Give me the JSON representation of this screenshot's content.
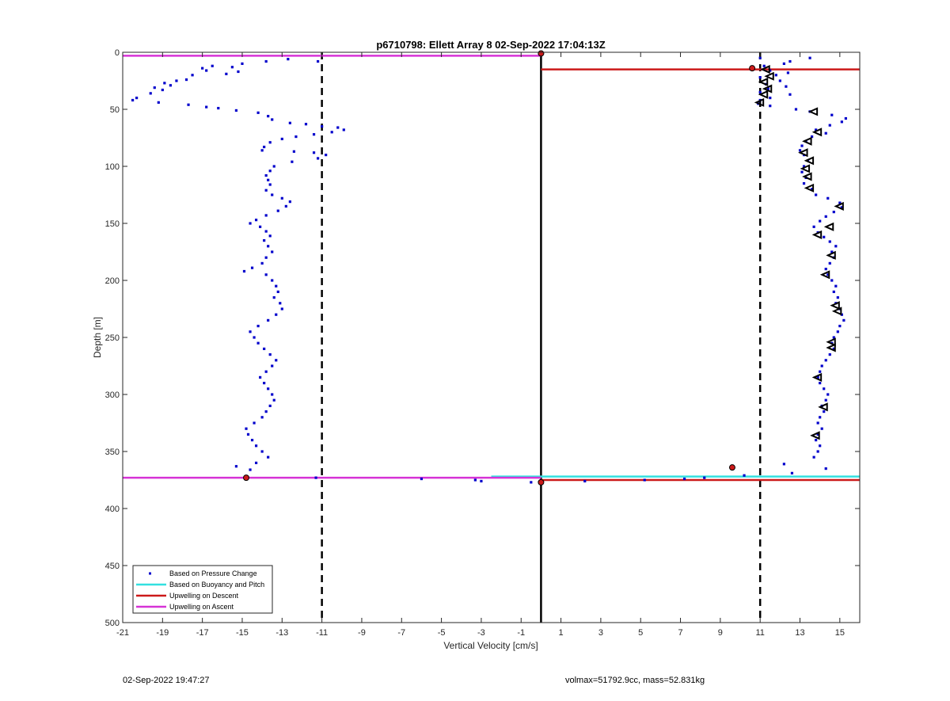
{
  "chart_data": {
    "type": "scatter",
    "title": "p6710798: Ellett Array 8 02-Sep-2022 17:04:13Z",
    "xlabel": "Vertical Velocity [cm/s]",
    "ylabel": "Depth [m]",
    "xlim": [
      -21,
      16
    ],
    "ylim": [
      0,
      500
    ],
    "y_reversed": true,
    "grid": false,
    "x_ticks": [
      -21,
      -19,
      -17,
      -15,
      -13,
      -11,
      -9,
      -7,
      -5,
      -3,
      -1,
      1,
      3,
      5,
      7,
      9,
      11,
      13,
      15
    ],
    "y_ticks": [
      0,
      50,
      100,
      150,
      200,
      250,
      300,
      350,
      400,
      450,
      500
    ],
    "legend_position": "bottom-left",
    "legend": [
      {
        "label": "Based on Pressure Change",
        "color": "#0000cc",
        "style": "dot"
      },
      {
        "label": "Based on Buoyancy and Pitch",
        "color": "#33e0e0",
        "style": "line"
      },
      {
        "label": "Upwelling on Descent",
        "color": "#cc1a1a",
        "style": "line"
      },
      {
        "label": "Upwelling on Ascent",
        "color": "#d633d6",
        "style": "line"
      }
    ],
    "reference_lines": [
      {
        "orientation": "vertical",
        "x": -11,
        "style": "dashed",
        "color": "#000000"
      },
      {
        "orientation": "vertical",
        "x": 11,
        "style": "dashed",
        "color": "#000000"
      },
      {
        "orientation": "vertical",
        "x": 0,
        "style": "solid",
        "color": "#000000"
      }
    ],
    "horizontal_lines": [
      {
        "name": "Upwelling on Ascent",
        "y": 3,
        "x_range": [
          -21,
          0
        ],
        "color": "#d633d6"
      },
      {
        "name": "Upwelling on Descent",
        "y": 15,
        "x_range": [
          0,
          16
        ],
        "color": "#cc1a1a"
      },
      {
        "name": "Based on Buoyancy and Pitch",
        "y": 372,
        "x_range": [
          -2.5,
          16
        ],
        "color": "#33e0e0"
      },
      {
        "name": "Upwelling on Descent",
        "y": 375,
        "x_range": [
          0,
          16
        ],
        "color": "#cc1a1a"
      },
      {
        "name": "Upwelling on Ascent",
        "y": 373,
        "x_range": [
          -21,
          0
        ],
        "color": "#d633d6"
      }
    ],
    "descent_profile": [
      [
        0.0,
        1
      ],
      [
        11.0,
        5
      ],
      [
        12.5,
        8
      ],
      [
        13.5,
        5
      ],
      [
        12.2,
        10
      ],
      [
        11.2,
        12
      ],
      [
        10.6,
        14
      ],
      [
        11.5,
        16
      ],
      [
        12.4,
        18
      ],
      [
        11.8,
        20
      ],
      [
        11.0,
        22
      ],
      [
        12.0,
        25
      ],
      [
        11.3,
        28
      ],
      [
        12.3,
        30
      ],
      [
        11.4,
        32
      ],
      [
        11.0,
        35
      ],
      [
        12.5,
        37
      ],
      [
        11.5,
        40
      ],
      [
        11.0,
        42
      ],
      [
        10.9,
        45
      ],
      [
        11.5,
        47
      ],
      [
        12.8,
        50
      ],
      [
        13.5,
        52
      ],
      [
        14.6,
        55
      ],
      [
        15.3,
        58
      ],
      [
        15.1,
        61
      ],
      [
        14.5,
        64
      ],
      [
        13.8,
        68
      ],
      [
        14.3,
        71
      ],
      [
        13.6,
        74
      ],
      [
        13.3,
        78
      ],
      [
        13.1,
        82
      ],
      [
        13.0,
        86
      ],
      [
        13.2,
        90
      ],
      [
        13.4,
        95
      ],
      [
        13.2,
        100
      ],
      [
        13.1,
        105
      ],
      [
        13.3,
        110
      ],
      [
        13.2,
        115
      ],
      [
        13.6,
        120
      ],
      [
        13.8,
        125
      ],
      [
        14.4,
        128
      ],
      [
        15.0,
        132
      ],
      [
        15.1,
        136
      ],
      [
        14.7,
        140
      ],
      [
        14.3,
        144
      ],
      [
        14.0,
        148
      ],
      [
        13.7,
        153
      ],
      [
        13.9,
        158
      ],
      [
        14.2,
        162
      ],
      [
        14.5,
        166
      ],
      [
        14.8,
        170
      ],
      [
        14.6,
        175
      ],
      [
        14.7,
        180
      ],
      [
        14.5,
        185
      ],
      [
        14.3,
        190
      ],
      [
        14.4,
        195
      ],
      [
        14.6,
        200
      ],
      [
        14.8,
        205
      ],
      [
        14.7,
        210
      ],
      [
        14.9,
        215
      ],
      [
        14.8,
        220
      ],
      [
        15.0,
        225
      ],
      [
        15.1,
        230
      ],
      [
        15.2,
        235
      ],
      [
        15.0,
        240
      ],
      [
        14.9,
        245
      ],
      [
        14.7,
        250
      ],
      [
        14.6,
        255
      ],
      [
        14.7,
        260
      ],
      [
        14.5,
        265
      ],
      [
        14.3,
        270
      ],
      [
        14.1,
        275
      ],
      [
        14.0,
        280
      ],
      [
        13.9,
        285
      ],
      [
        14.0,
        290
      ],
      [
        14.2,
        295
      ],
      [
        14.4,
        300
      ],
      [
        14.3,
        305
      ],
      [
        14.1,
        310
      ],
      [
        14.2,
        315
      ],
      [
        14.0,
        320
      ],
      [
        13.9,
        325
      ],
      [
        14.1,
        330
      ],
      [
        13.9,
        335
      ],
      [
        13.8,
        340
      ],
      [
        14.0,
        345
      ],
      [
        13.9,
        350
      ],
      [
        13.7,
        355
      ],
      [
        14.3,
        365
      ],
      [
        12.2,
        361
      ],
      [
        12.6,
        369
      ],
      [
        10.2,
        371
      ],
      [
        8.2,
        373
      ],
      [
        7.2,
        374
      ],
      [
        5.2,
        375
      ],
      [
        2.2,
        376
      ],
      [
        0.0,
        377
      ]
    ],
    "ascent_profile": [
      [
        -12.7,
        6
      ],
      [
        -11.2,
        8
      ],
      [
        -13.8,
        8
      ],
      [
        -15.0,
        10
      ],
      [
        -16.5,
        12
      ],
      [
        -15.5,
        13
      ],
      [
        -17.0,
        14
      ],
      [
        -16.8,
        16
      ],
      [
        -15.2,
        17
      ],
      [
        -15.8,
        19
      ],
      [
        -17.5,
        20
      ],
      [
        -17.8,
        24
      ],
      [
        -18.3,
        25
      ],
      [
        -18.9,
        27
      ],
      [
        -18.6,
        29
      ],
      [
        -19.4,
        31
      ],
      [
        -19.0,
        33
      ],
      [
        -19.6,
        36
      ],
      [
        -20.3,
        40
      ],
      [
        -20.5,
        42
      ],
      [
        -19.2,
        44
      ],
      [
        -17.7,
        46
      ],
      [
        -16.8,
        48
      ],
      [
        -16.2,
        49
      ],
      [
        -15.3,
        51
      ],
      [
        -14.2,
        53
      ],
      [
        -13.7,
        56
      ],
      [
        -13.5,
        59
      ],
      [
        -12.6,
        62
      ],
      [
        -11.8,
        63
      ],
      [
        -11.0,
        65
      ],
      [
        -10.2,
        66
      ],
      [
        -9.9,
        68
      ],
      [
        -10.5,
        70
      ],
      [
        -11.4,
        72
      ],
      [
        -12.3,
        74
      ],
      [
        -13.0,
        76
      ],
      [
        -13.6,
        79
      ],
      [
        -13.9,
        83
      ],
      [
        -14.0,
        86
      ],
      [
        -12.4,
        87
      ],
      [
        -11.4,
        88
      ],
      [
        -10.8,
        90
      ],
      [
        -11.2,
        93
      ],
      [
        -12.5,
        96
      ],
      [
        -13.4,
        100
      ],
      [
        -13.6,
        104
      ],
      [
        -13.8,
        108
      ],
      [
        -13.7,
        112
      ],
      [
        -13.6,
        116
      ],
      [
        -13.8,
        121
      ],
      [
        -13.5,
        125
      ],
      [
        -13.0,
        128
      ],
      [
        -12.6,
        131
      ],
      [
        -12.8,
        135
      ],
      [
        -13.2,
        139
      ],
      [
        -13.8,
        143
      ],
      [
        -14.3,
        147
      ],
      [
        -14.6,
        150
      ],
      [
        -14.1,
        153
      ],
      [
        -13.8,
        157
      ],
      [
        -13.6,
        161
      ],
      [
        -13.9,
        165
      ],
      [
        -13.7,
        170
      ],
      [
        -13.5,
        175
      ],
      [
        -13.8,
        180
      ],
      [
        -14.0,
        185
      ],
      [
        -14.5,
        189
      ],
      [
        -14.9,
        192
      ],
      [
        -13.8,
        195
      ],
      [
        -13.5,
        200
      ],
      [
        -13.3,
        205
      ],
      [
        -13.2,
        210
      ],
      [
        -13.4,
        215
      ],
      [
        -13.1,
        220
      ],
      [
        -13.0,
        225
      ],
      [
        -13.3,
        230
      ],
      [
        -13.7,
        235
      ],
      [
        -14.2,
        240
      ],
      [
        -14.6,
        245
      ],
      [
        -14.4,
        250
      ],
      [
        -14.2,
        255
      ],
      [
        -13.9,
        260
      ],
      [
        -13.6,
        265
      ],
      [
        -13.3,
        270
      ],
      [
        -13.5,
        275
      ],
      [
        -13.8,
        280
      ],
      [
        -14.1,
        285
      ],
      [
        -13.9,
        290
      ],
      [
        -13.7,
        295
      ],
      [
        -13.5,
        300
      ],
      [
        -13.4,
        305
      ],
      [
        -13.6,
        310
      ],
      [
        -13.8,
        315
      ],
      [
        -14.0,
        320
      ],
      [
        -14.4,
        325
      ],
      [
        -14.8,
        330
      ],
      [
        -14.7,
        335
      ],
      [
        -14.5,
        340
      ],
      [
        -14.3,
        345
      ],
      [
        -14.0,
        350
      ],
      [
        -13.7,
        355
      ],
      [
        -14.3,
        360
      ],
      [
        -15.3,
        363
      ],
      [
        -14.6,
        366
      ],
      [
        -14.8,
        372
      ],
      [
        -11.3,
        373
      ],
      [
        -6.0,
        374
      ],
      [
        -3.3,
        375
      ],
      [
        -3.0,
        376
      ],
      [
        -0.5,
        377
      ],
      [
        0.0,
        2
      ]
    ],
    "triangle_markers": [
      [
        11.3,
        15
      ],
      [
        11.5,
        21
      ],
      [
        11.2,
        26
      ],
      [
        11.4,
        32
      ],
      [
        11.2,
        37
      ],
      [
        11.0,
        44
      ],
      [
        13.7,
        52
      ],
      [
        13.9,
        70
      ],
      [
        13.4,
        78
      ],
      [
        13.2,
        88
      ],
      [
        13.5,
        95
      ],
      [
        13.3,
        102
      ],
      [
        13.4,
        109
      ],
      [
        13.5,
        119
      ],
      [
        15.0,
        135
      ],
      [
        14.5,
        153
      ],
      [
        13.9,
        160
      ],
      [
        14.6,
        178
      ],
      [
        14.3,
        195
      ],
      [
        14.8,
        222
      ],
      [
        14.9,
        227
      ],
      [
        14.6,
        254
      ],
      [
        14.6,
        259
      ],
      [
        13.9,
        285
      ],
      [
        14.2,
        311
      ],
      [
        13.8,
        336
      ]
    ],
    "red_markers": [
      [
        0.0,
        1
      ],
      [
        10.6,
        14
      ],
      [
        9.6,
        364
      ],
      [
        0.0,
        377
      ],
      [
        -14.8,
        373
      ]
    ]
  },
  "footer": {
    "left": "02-Sep-2022 19:47:27",
    "right": "volmax=51792.9cc, mass=52.831kg"
  }
}
